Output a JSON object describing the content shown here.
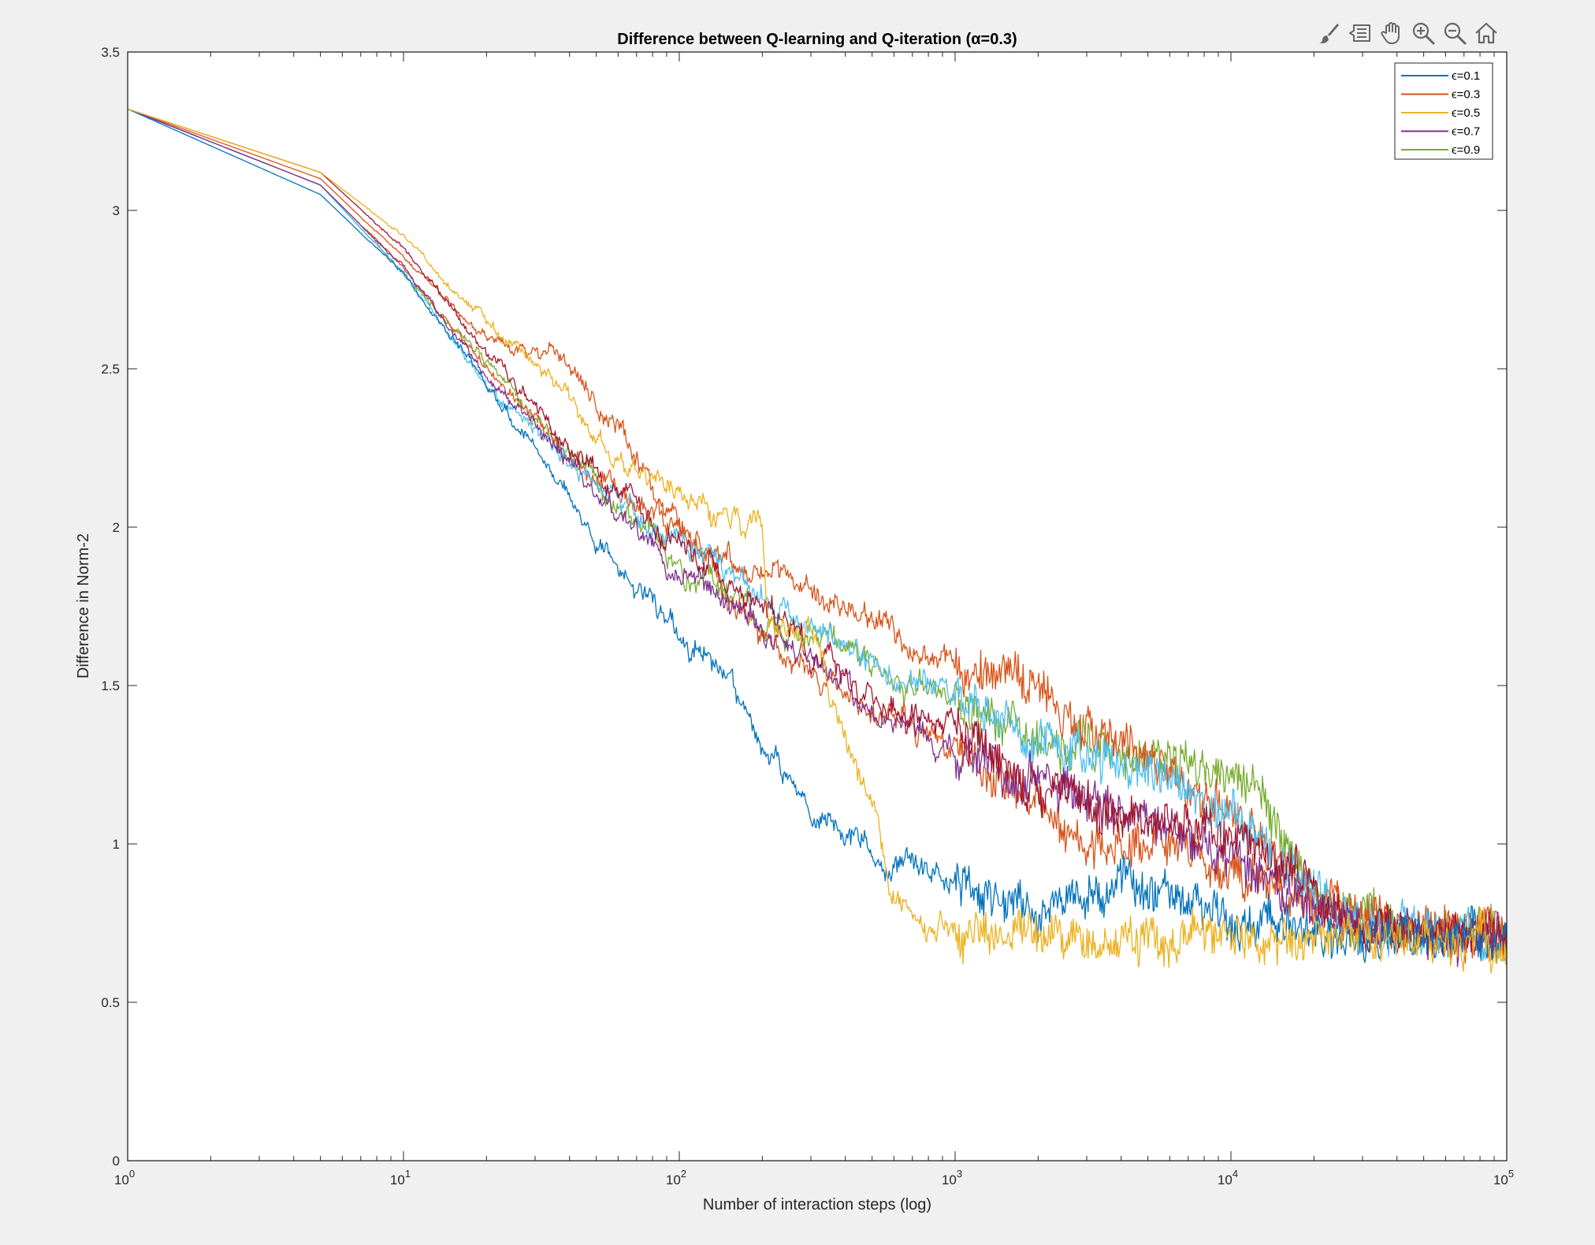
{
  "toolbar": {
    "icons": [
      "brush-icon",
      "data-tips-icon",
      "pan-hand-icon",
      "zoom-in-icon",
      "zoom-out-icon",
      "home-icon"
    ]
  },
  "colors": {
    "figure_background": "#f0f0f0",
    "axes_background": "#ffffff",
    "axis": "#262626"
  },
  "chart_data": {
    "type": "line",
    "title": "Difference between Q-learning and Q-iteration (α=0.3)",
    "xlabel": "Number of interaction steps (log)",
    "ylabel": "Difference in Norm-2",
    "xscale": "log",
    "xlim": [
      1,
      100000
    ],
    "ylim": [
      0,
      3.5
    ],
    "x_ticks": [
      {
        "base": "10",
        "exp": "0",
        "value": 1
      },
      {
        "base": "10",
        "exp": "1",
        "value": 10
      },
      {
        "base": "10",
        "exp": "2",
        "value": 100
      },
      {
        "base": "10",
        "exp": "3",
        "value": 1000
      },
      {
        "base": "10",
        "exp": "4",
        "value": 10000
      },
      {
        "base": "10",
        "exp": "5",
        "value": 100000
      }
    ],
    "y_ticks": [
      "0",
      "0.5",
      "1",
      "1.5",
      "2",
      "2.5",
      "3",
      "3.5"
    ],
    "grid": false,
    "legend_position": "top-right",
    "legend": [
      {
        "label": "ϵ=0.1",
        "color": "#0072BD"
      },
      {
        "label": "ϵ=0.3",
        "color": "#D95319"
      },
      {
        "label": "ϵ=0.5",
        "color": "#EDB120"
      },
      {
        "label": "ϵ=0.7",
        "color": "#7E2F8E"
      },
      {
        "label": "ϵ=0.9",
        "color": "#77AC30"
      }
    ],
    "series": [
      {
        "color": "#77AC30",
        "noise": 0.045,
        "seed": 11,
        "points": [
          [
            1,
            3.32
          ],
          [
            5,
            3.08
          ],
          [
            10,
            2.8
          ],
          [
            20,
            2.52
          ],
          [
            30,
            2.35
          ],
          [
            50,
            2.15
          ],
          [
            100,
            1.88
          ],
          [
            200,
            1.72
          ],
          [
            400,
            1.6
          ],
          [
            1000,
            1.45
          ],
          [
            2000,
            1.35
          ],
          [
            4000,
            1.28
          ],
          [
            8000,
            1.22
          ],
          [
            12000,
            1.2
          ],
          [
            20000,
            0.85
          ],
          [
            40000,
            0.72
          ],
          [
            100000,
            0.71
          ]
        ]
      },
      {
        "color": "#D95319",
        "noise": 0.045,
        "seed": 21,
        "points": [
          [
            1,
            3.32
          ],
          [
            5,
            3.1
          ],
          [
            10,
            2.85
          ],
          [
            20,
            2.6
          ],
          [
            35,
            2.55
          ],
          [
            60,
            2.3
          ],
          [
            100,
            2.0
          ],
          [
            200,
            1.85
          ],
          [
            400,
            1.75
          ],
          [
            1000,
            1.56
          ],
          [
            2000,
            1.48
          ],
          [
            4000,
            1.3
          ],
          [
            10000,
            1.1
          ],
          [
            20000,
            0.85
          ],
          [
            40000,
            0.72
          ],
          [
            100000,
            0.71
          ]
        ]
      },
      {
        "color": "#D95319",
        "noise": 0.045,
        "seed": 22,
        "points": [
          [
            1,
            3.32
          ],
          [
            5,
            3.08
          ],
          [
            10,
            2.82
          ],
          [
            20,
            2.5
          ],
          [
            40,
            2.22
          ],
          [
            100,
            2.0
          ],
          [
            200,
            1.65
          ],
          [
            500,
            1.4
          ],
          [
            1000,
            1.3
          ],
          [
            2000,
            1.1
          ],
          [
            3000,
            1.0
          ],
          [
            6000,
            1.0
          ],
          [
            10000,
            0.9
          ],
          [
            30000,
            0.75
          ],
          [
            100000,
            0.71
          ]
        ]
      },
      {
        "color": "#4DBEEE",
        "noise": 0.045,
        "seed": 31,
        "points": [
          [
            1,
            3.32
          ],
          [
            5,
            3.08
          ],
          [
            10,
            2.8
          ],
          [
            20,
            2.45
          ],
          [
            40,
            2.2
          ],
          [
            100,
            1.95
          ],
          [
            200,
            1.8
          ],
          [
            400,
            1.62
          ],
          [
            1000,
            1.45
          ],
          [
            2000,
            1.32
          ],
          [
            4000,
            1.25
          ],
          [
            8000,
            1.15
          ],
          [
            15000,
            0.95
          ],
          [
            30000,
            0.75
          ],
          [
            100000,
            0.71
          ]
        ]
      },
      {
        "color": "#7E2F8E",
        "noise": 0.045,
        "seed": 41,
        "points": [
          [
            1,
            3.32
          ],
          [
            5,
            3.08
          ],
          [
            10,
            2.82
          ],
          [
            20,
            2.48
          ],
          [
            40,
            2.2
          ],
          [
            100,
            1.85
          ],
          [
            200,
            1.7
          ],
          [
            500,
            1.42
          ],
          [
            1000,
            1.28
          ],
          [
            2000,
            1.2
          ],
          [
            5000,
            1.08
          ],
          [
            10000,
            0.95
          ],
          [
            20000,
            0.8
          ],
          [
            40000,
            0.7
          ],
          [
            100000,
            0.7
          ]
        ]
      },
      {
        "color": "#A2142F",
        "noise": 0.045,
        "seed": 51,
        "points": [
          [
            1,
            3.32
          ],
          [
            5,
            3.12
          ],
          [
            10,
            2.88
          ],
          [
            20,
            2.55
          ],
          [
            40,
            2.25
          ],
          [
            100,
            1.95
          ],
          [
            200,
            1.75
          ],
          [
            500,
            1.45
          ],
          [
            1000,
            1.35
          ],
          [
            2000,
            1.18
          ],
          [
            4000,
            1.1
          ],
          [
            8000,
            1.08
          ],
          [
            15000,
            0.95
          ],
          [
            25000,
            0.75
          ],
          [
            100000,
            0.71
          ]
        ]
      },
      {
        "color": "#0072BD",
        "noise": 0.045,
        "seed": 61,
        "points": [
          [
            1,
            3.32
          ],
          [
            5,
            3.05
          ],
          [
            10,
            2.8
          ],
          [
            20,
            2.45
          ],
          [
            30,
            2.25
          ],
          [
            50,
            1.95
          ],
          [
            70,
            1.8
          ],
          [
            100,
            1.65
          ],
          [
            150,
            1.55
          ],
          [
            200,
            1.3
          ],
          [
            300,
            1.1
          ],
          [
            500,
            0.98
          ],
          [
            1000,
            0.88
          ],
          [
            2000,
            0.78
          ],
          [
            4000,
            0.88
          ],
          [
            10000,
            0.75
          ],
          [
            30000,
            0.68
          ],
          [
            100000,
            0.71
          ]
        ]
      },
      {
        "color": "#EDB120",
        "noise": 0.045,
        "seed": 71,
        "points": [
          [
            1,
            3.32
          ],
          [
            5,
            3.12
          ],
          [
            10,
            2.92
          ],
          [
            20,
            2.65
          ],
          [
            35,
            2.45
          ],
          [
            60,
            2.2
          ],
          [
            100,
            2.1
          ],
          [
            200,
            1.98
          ],
          [
            210,
            1.7
          ],
          [
            300,
            1.65
          ],
          [
            400,
            1.35
          ],
          [
            500,
            1.15
          ],
          [
            600,
            0.85
          ],
          [
            700,
            0.75
          ],
          [
            1000,
            0.72
          ],
          [
            3000,
            0.7
          ],
          [
            10000,
            0.7
          ],
          [
            100000,
            0.7
          ]
        ]
      }
    ]
  }
}
